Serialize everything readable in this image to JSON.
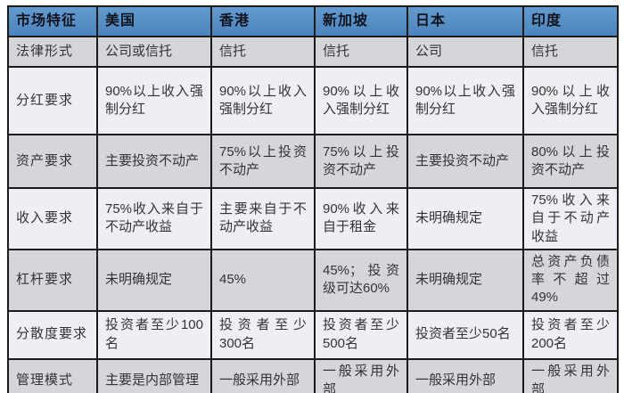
{
  "chart_data": {
    "type": "table",
    "columns": [
      "市场特征",
      "美国",
      "香港",
      "新加坡",
      "日本",
      "印度"
    ],
    "rows": [
      {
        "feature": "法律形式",
        "cells": [
          "公司或信托",
          "信托",
          "信托",
          "公司",
          "信托"
        ]
      },
      {
        "feature": "分红要求",
        "cells": [
          "90%以上收入强制分红",
          "90%以上收入强制分红",
          "90%以上收入强制分红",
          "90%以上收入强制分红",
          "90%以上收入强制分红"
        ]
      },
      {
        "feature": "资产要求",
        "cells": [
          "主要投资不动产",
          "75%以上投资不动产",
          "75%以上投资不动产",
          "主要投资不动产",
          "80%以上投资不动产"
        ]
      },
      {
        "feature": "收入要求",
        "cells": [
          "75%收入来自于不动产收益",
          "主要来自于不动产收益",
          "90%收入来自于租金",
          "未明确规定",
          "75%收入来自于不动产收益"
        ]
      },
      {
        "feature": "杠杆要求",
        "cells": [
          "未明确规定",
          "45%",
          "45%；投资级可达60%",
          "未明确规定",
          "总资产负债率不超过49%"
        ]
      },
      {
        "feature": "分散度要求",
        "cells": [
          "投资者至少100名",
          "投资者至少300名",
          "投资者至少500名",
          "投资者至少50名",
          "投资者至少200名"
        ]
      },
      {
        "feature": "管理模式",
        "cells": [
          "主要是内部管理",
          "一般采用外部",
          "一般采用外部",
          "一般采用外部",
          "一般采用外部"
        ]
      }
    ]
  },
  "colors": {
    "page_bg": "#ffffff",
    "header_bg_top": "#639bd0",
    "header_bg_bottom": "#4c84bb",
    "header_text": "#11141f",
    "body_text": "#33343a",
    "row_odd_bg": "#d5d6d9",
    "row_even_bg": "#edeff4",
    "border": "#1b1b1b"
  }
}
